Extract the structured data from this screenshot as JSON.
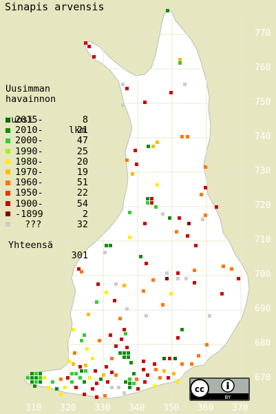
{
  "title": "Sinapis arvensis",
  "legend": {
    "header_line1": "Uusimman",
    "header_line2": "havainnon",
    "header_line3": "vuosi",
    "header_count": "lkm",
    "rows": [
      {
        "period": "2015-",
        "count": "8",
        "color": "#0b6b0b"
      },
      {
        "period": "2010-",
        "count": "21",
        "color": "#0e8e0e"
      },
      {
        "period": "2000-",
        "count": "47",
        "color": "#33cc33"
      },
      {
        "period": "1990-",
        "count": "25",
        "color": "#aaee22"
      },
      {
        "period": "1980-",
        "count": "20",
        "color": "#ffee00"
      },
      {
        "period": "1970-",
        "count": "19",
        "color": "#ffbb00"
      },
      {
        "period": "1960-",
        "count": "51",
        "color": "#ff7700"
      },
      {
        "period": "1950-",
        "count": "22",
        "color": "#ee3300"
      },
      {
        "period": "1900-",
        "count": "54",
        "color": "#cc0000"
      },
      {
        "period": "-1899",
        "count": "2",
        "color": "#880000"
      },
      {
        "period": "???",
        "count": "32",
        "color": "#cccccc"
      }
    ],
    "total_label": "Yhteensä",
    "total_count": "301"
  },
  "y_ticks": [
    "770",
    "760",
    "750",
    "740",
    "730",
    "720",
    "710",
    "700",
    "690",
    "680",
    "670"
  ],
  "x_ticks": [
    "310",
    "320",
    "330",
    "340",
    "350",
    "360",
    "370"
  ],
  "license_badge": {
    "text": "BY",
    "icons": [
      "cc-icon",
      "attribution-icon"
    ]
  }
}
